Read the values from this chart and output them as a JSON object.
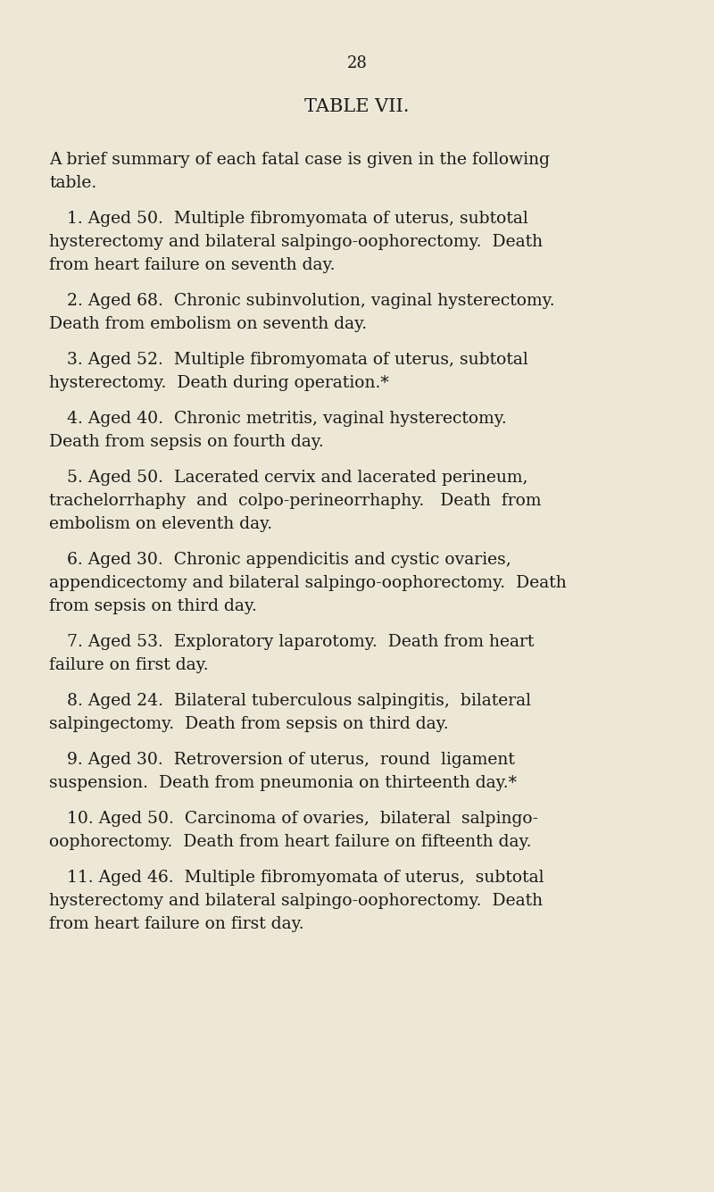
{
  "page_number": "28",
  "title": "TABLE VII.",
  "bg_color": "#ede8d5",
  "text_color": "#1a1a1a",
  "intro_line1": "A brief summary of each fatal case is given in the following",
  "intro_line2": "table.",
  "entries": [
    {
      "number": "1",
      "lines": [
        "1. Aged 50.  Multiple fibromyomata of uterus, subtotal",
        "hysterectomy and bilateral salpingo-oophorectomy.  Death",
        "from heart failure on seventh day."
      ]
    },
    {
      "number": "2",
      "lines": [
        "2. Aged 68.  Chronic subinvolution, vaginal hysterectomy.",
        "Death from embolism on seventh day."
      ]
    },
    {
      "number": "3",
      "lines": [
        "3. Aged 52.  Multiple fibromyomata of uterus, subtotal",
        "hysterectomy.  Death during operation.*"
      ]
    },
    {
      "number": "4",
      "lines": [
        "4. Aged 40.  Chronic metritis, vaginal hysterectomy.",
        "Death from sepsis on fourth day."
      ]
    },
    {
      "number": "5",
      "lines": [
        "5. Aged 50.  Lacerated cervix and lacerated perineum,",
        "trachelorrhaphy  and  colpo-perineorrhaphy.   Death  from",
        "embolism on eleventh day."
      ]
    },
    {
      "number": "6",
      "lines": [
        "6. Aged 30.  Chronic appendicitis and cystic ovaries,",
        "appendicectomy and bilateral salpingo-oophorectomy.  Death",
        "from sepsis on third day."
      ]
    },
    {
      "number": "7",
      "lines": [
        "7. Aged 53.  Exploratory laparotomy.  Death from heart",
        "failure on first day."
      ]
    },
    {
      "number": "8",
      "lines": [
        "8. Aged 24.  Bilateral tuberculous salpingitis,  bilateral",
        "salpingectomy.  Death from sepsis on third day."
      ]
    },
    {
      "number": "9",
      "lines": [
        "9. Aged 30.  Retroversion of uterus,  round  ligament",
        "suspension.  Death from pneumonia on thirteenth day.*"
      ]
    },
    {
      "number": "10",
      "lines": [
        "10. Aged 50.  Carcinoma of ovaries,  bilateral  salpingo-",
        "oophorectomy.  Death from heart failure on fifteenth day."
      ]
    },
    {
      "number": "11",
      "lines": [
        "11. Aged 46.  Multiple fibromyomata of uterus,  subtotal",
        "hysterectomy and bilateral salpingo-oophorectomy.  Death",
        "from heart failure on first day."
      ]
    }
  ],
  "page_num_fontsize": 13,
  "title_fontsize": 15,
  "body_fontsize": 13.5
}
